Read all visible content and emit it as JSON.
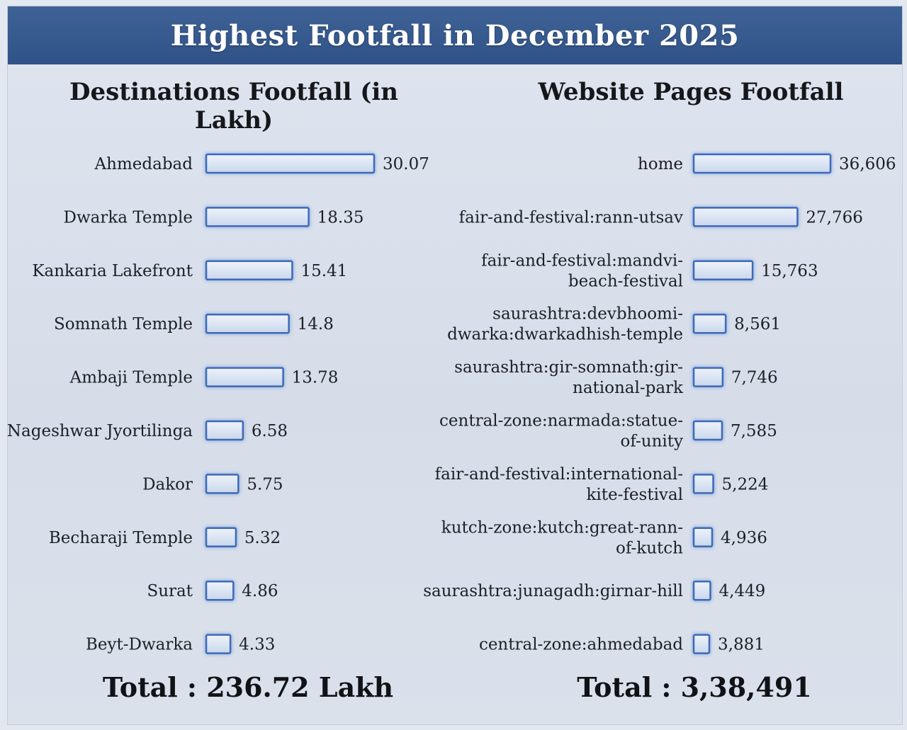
{
  "header": {
    "title": "Highest Footfall in December 2025"
  },
  "colors": {
    "banner": "#3a5c90",
    "bar_fill": "#dce6f4",
    "bar_stroke": "#3e69b8",
    "bar_glow": "#7fa4dc"
  },
  "left_panel": {
    "title": "Destinations Footfall (in Lakh)",
    "total": "Total : 236.72 Lakh"
  },
  "right_panel": {
    "title": "Website Pages Footfall",
    "total": "Total : 3,38,491"
  },
  "chart_data": [
    {
      "type": "bar",
      "orientation": "horizontal",
      "title": "Destinations Footfall (in Lakh)",
      "categories": [
        [
          "Ahmedabad"
        ],
        [
          "Dwarka Temple"
        ],
        [
          "Kankaria Lakefront"
        ],
        [
          "Somnath Temple"
        ],
        [
          "Ambaji Temple"
        ],
        [
          "Nageshwar Jyortilinga"
        ],
        [
          "Dakor"
        ],
        [
          "Becharaji Temple"
        ],
        [
          "Surat"
        ],
        [
          "Beyt-Dwarka"
        ]
      ],
      "values": [
        30.07,
        18.35,
        15.41,
        14.8,
        13.78,
        6.58,
        5.75,
        5.32,
        4.86,
        4.33
      ],
      "value_labels": [
        "30.07",
        "18.35",
        "15.41",
        "14.8",
        "13.78",
        "6.58",
        "5.75",
        "5.32",
        "4.86",
        "4.33"
      ],
      "xlim": [
        0,
        30.07
      ],
      "total": "Total : 236.72 Lakh"
    },
    {
      "type": "bar",
      "orientation": "horizontal",
      "title": "Website Pages Footfall",
      "categories": [
        [
          "home"
        ],
        [
          "fair-and-festival:rann-utsav"
        ],
        [
          "fair-and-festival:mandvi-",
          "beach-festival"
        ],
        [
          "saurashtra:devbhoomi-",
          "dwarka:dwarkadhish-temple"
        ],
        [
          "saurashtra:gir-somnath:gir-",
          "national-park"
        ],
        [
          "central-zone:narmada:statue-",
          "of-unity"
        ],
        [
          "fair-and-festival:international-",
          "kite-festival"
        ],
        [
          "kutch-zone:kutch:great-rann-",
          "of-kutch"
        ],
        [
          "saurashtra:junagadh:girnar-hill"
        ],
        [
          "central-zone:ahmedabad"
        ]
      ],
      "values": [
        36606,
        27766,
        15763,
        8561,
        7746,
        7585,
        5224,
        4936,
        4449,
        3881
      ],
      "value_labels": [
        "36,606",
        "27,766",
        "15,763",
        "8,561",
        "7,746",
        "7,585",
        "5,224",
        "4,936",
        "4,449",
        "3,881"
      ],
      "xlim": [
        0,
        36606
      ],
      "total": "Total : 3,38,491"
    }
  ]
}
